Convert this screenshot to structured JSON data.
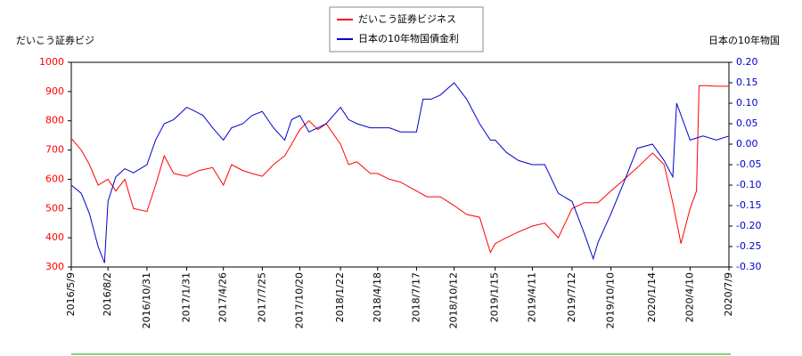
{
  "chart_data": {
    "type": "line",
    "y_label": "だいこう証券ビジ",
    "y2_label": "日本の10年物国",
    "xlim": [
      "2016/5/9",
      "2020/7/9"
    ],
    "xticks": [
      "2016/5/9",
      "2016/8/2",
      "2016/10/31",
      "2017/1/31",
      "2017/4/26",
      "2017/7/25",
      "2017/10/20",
      "2018/1/22",
      "2018/4/18",
      "2018/7/17",
      "2018/10/12",
      "2019/1/15",
      "2019/4/11",
      "2019/7/12",
      "2019/10/10",
      "2020/1/14",
      "2020/4/10",
      "2020/7/9"
    ],
    "ylim": [
      300,
      1000
    ],
    "yticks": [
      300,
      400,
      500,
      600,
      700,
      800,
      900,
      1000
    ],
    "y2lim": [
      -0.3,
      0.2
    ],
    "y2ticks": [
      {
        "value": -0.3,
        "label": "-0.30"
      },
      -0.25,
      {
        "value": -0.2,
        "label": "-0.20"
      },
      -0.15,
      {
        "value": -0.1,
        "label": "-0.10"
      },
      -0.05,
      {
        "value": 0,
        "label": "0.00"
      },
      0.05,
      {
        "value": 0.1,
        "label": "0.10"
      },
      0.15,
      {
        "value": 0.2,
        "label": "0.20"
      }
    ],
    "grid": false,
    "series": [
      {
        "name": "だいこう証券ビジネス",
        "color": "#ff0000",
        "x": [
          "2016/5/9",
          "2016/6/1",
          "2016/6/20",
          "2016/7/10",
          "2016/8/2",
          "2016/8/20",
          "2016/9/10",
          "2016/9/30",
          "2016/10/31",
          "2016/11/20",
          "2016/12/10",
          "2017/1/1",
          "2017/1/31",
          "2017/3/1",
          "2017/4/1",
          "2017/4/26",
          "2017/5/15",
          "2017/6/10",
          "2017/7/1",
          "2017/7/25",
          "2017/8/20",
          "2017/9/15",
          "2017/10/1",
          "2017/10/20",
          "2017/11/10",
          "2017/12/1",
          "2017/12/20",
          "2018/1/22",
          "2018/2/10",
          "2018/3/1",
          "2018/4/1",
          "2018/4/18",
          "2018/5/15",
          "2018/6/10",
          "2018/7/17",
          "2018/8/10",
          "2018/9/10",
          "2018/10/12",
          "2018/11/10",
          "2018/12/10",
          "2019/1/4",
          "2019/1/15",
          "2019/2/10",
          "2019/3/10",
          "2019/4/11",
          "2019/5/10",
          "2019/6/10",
          "2019/7/12",
          "2019/8/10",
          "2019/9/10",
          "2019/10/10",
          "2019/11/10",
          "2019/12/10",
          "2020/1/14",
          "2020/2/10",
          "2020/3/1",
          "2020/3/20",
          "2020/4/10",
          "2020/4/25",
          "2020/5/1",
          "2020/5/20",
          "2020/6/10",
          "2020/7/9"
        ],
        "values": [
          740,
          700,
          650,
          580,
          600,
          560,
          600,
          500,
          490,
          580,
          680,
          620,
          610,
          630,
          640,
          580,
          650,
          630,
          620,
          610,
          650,
          680,
          720,
          770,
          800,
          770,
          790,
          720,
          650,
          660,
          620,
          620,
          600,
          590,
          560,
          540,
          540,
          510,
          480,
          470,
          350,
          380,
          400,
          420,
          440,
          450,
          400,
          500,
          520,
          520,
          560,
          600,
          640,
          690,
          650,
          520,
          380,
          500,
          560,
          920,
          920,
          918,
          918
        ]
      },
      {
        "name": "日本の10年物国債金利",
        "color": "#0000cc",
        "axis": "y2",
        "x": [
          "2016/5/9",
          "2016/6/1",
          "2016/6/20",
          "2016/7/10",
          "2016/7/25",
          "2016/8/2",
          "2016/8/20",
          "2016/9/10",
          "2016/9/30",
          "2016/10/31",
          "2016/11/20",
          "2016/12/10",
          "2017/1/1",
          "2017/1/31",
          "2017/2/20",
          "2017/3/10",
          "2017/4/1",
          "2017/4/26",
          "2017/5/15",
          "2017/6/10",
          "2017/7/1",
          "2017/7/25",
          "2017/8/20",
          "2017/9/15",
          "2017/10/1",
          "2017/10/20",
          "2017/11/10",
          "2017/12/1",
          "2017/12/20",
          "2018/1/22",
          "2018/2/10",
          "2018/3/1",
          "2018/4/1",
          "2018/4/18",
          "2018/5/15",
          "2018/6/10",
          "2018/7/17",
          "2018/8/1",
          "2018/8/20",
          "2018/9/10",
          "2018/10/12",
          "2018/11/10",
          "2018/12/10",
          "2019/1/4",
          "2019/1/15",
          "2019/2/10",
          "2019/3/10",
          "2019/4/11",
          "2019/5/10",
          "2019/6/10",
          "2019/7/12",
          "2019/8/10",
          "2019/8/30",
          "2019/9/10",
          "2019/10/10",
          "2019/11/10",
          "2019/12/10",
          "2020/1/14",
          "2020/2/10",
          "2020/3/1",
          "2020/3/10",
          "2020/4/10",
          "2020/5/10",
          "2020/6/10",
          "2020/7/9"
        ],
        "values": [
          -0.1,
          -0.12,
          -0.17,
          -0.25,
          -0.29,
          -0.14,
          -0.08,
          -0.06,
          -0.07,
          -0.05,
          0.01,
          0.05,
          0.06,
          0.09,
          0.08,
          0.07,
          0.04,
          0.01,
          0.04,
          0.05,
          0.07,
          0.08,
          0.04,
          0.01,
          0.06,
          0.07,
          0.03,
          0.04,
          0.05,
          0.09,
          0.06,
          0.05,
          0.04,
          0.04,
          0.04,
          0.03,
          0.03,
          0.11,
          0.11,
          0.12,
          0.15,
          0.11,
          0.05,
          0.01,
          0.01,
          -0.02,
          -0.04,
          -0.05,
          -0.05,
          -0.12,
          -0.14,
          -0.22,
          -0.28,
          -0.24,
          -0.17,
          -0.09,
          -0.01,
          0.0,
          -0.04,
          -0.08,
          0.1,
          0.01,
          0.02,
          0.01,
          0.02
        ]
      }
    ]
  }
}
